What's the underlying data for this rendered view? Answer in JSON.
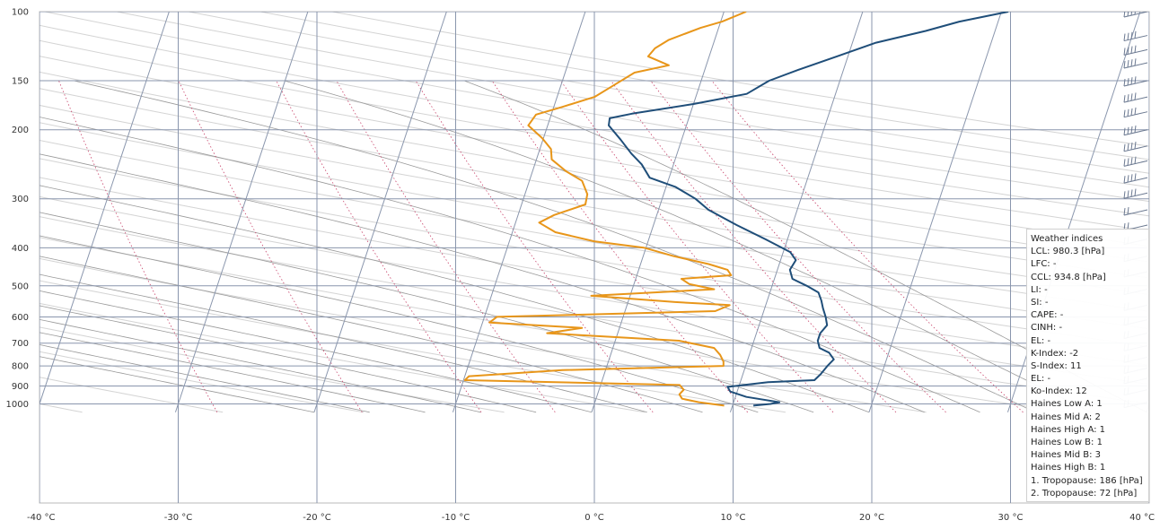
{
  "chart_data": {
    "type": "line",
    "title": "",
    "x_axis": {
      "ticks": [
        "-40 °C",
        "-30 °C",
        "-20 °C",
        "-10 °C",
        "0 °C",
        "10 °C",
        "20 °C",
        "30 °C",
        "40 °C"
      ],
      "values": [
        -40,
        -30,
        -20,
        -10,
        0,
        10,
        20,
        30,
        40
      ],
      "range": [
        -40,
        40
      ]
    },
    "y_axis": {
      "ticks": [
        "100",
        "150",
        "200",
        "300",
        "400",
        "500",
        "600",
        "700",
        "800",
        "900",
        "1000"
      ],
      "values": [
        100,
        150,
        200,
        300,
        400,
        500,
        600,
        700,
        800,
        900,
        1000
      ],
      "scale": "log",
      "range": [
        1050,
        100
      ],
      "inverted": true
    },
    "grid": true,
    "skew_t": true,
    "series": [
      {
        "color": "#1f4e79",
        "points": [
          [
            1010,
            11.5
          ],
          [
            1000,
            12.7
          ],
          [
            990,
            13.3
          ],
          [
            960,
            10.8
          ],
          [
            930,
            9.5
          ],
          [
            905,
            9.2
          ],
          [
            880,
            12
          ],
          [
            870,
            15.3
          ],
          [
            840,
            15.6
          ],
          [
            800,
            15.9
          ],
          [
            770,
            16.2
          ],
          [
            740,
            15.7
          ],
          [
            720,
            14.9
          ],
          [
            690,
            14.6
          ],
          [
            660,
            14.6
          ],
          [
            630,
            14.9
          ],
          [
            600,
            14.6
          ],
          [
            570,
            14.2
          ],
          [
            545,
            13.9
          ],
          [
            520,
            13.5
          ],
          [
            500,
            12.5
          ],
          [
            480,
            11.3
          ],
          [
            455,
            10.9
          ],
          [
            430,
            11.1
          ],
          [
            410,
            10.5
          ],
          [
            380,
            8.4
          ],
          [
            350,
            6
          ],
          [
            320,
            3.6
          ],
          [
            300,
            2.4
          ],
          [
            280,
            0.7
          ],
          [
            265,
            -1.4
          ],
          [
            245,
            -2.3
          ],
          [
            230,
            -3.3
          ],
          [
            212,
            -4.4
          ],
          [
            195,
            -5.6
          ],
          [
            187,
            -5.7
          ],
          [
            182,
            -4.2
          ],
          [
            172,
            0
          ],
          [
            162,
            3.6
          ],
          [
            150,
            4.9
          ],
          [
            140,
            6.9
          ],
          [
            130,
            9.2
          ],
          [
            120,
            11.7
          ],
          [
            112,
            15
          ],
          [
            106,
            17.2
          ],
          [
            100,
            20.5
          ]
        ]
      },
      {
        "color": "#e8961a",
        "points": [
          [
            1010,
            9.4
          ],
          [
            990,
            7.5
          ],
          [
            970,
            6.2
          ],
          [
            945,
            5.9
          ],
          [
            920,
            6.1
          ],
          [
            895,
            5.7
          ],
          [
            870,
            -9.9
          ],
          [
            850,
            -9.7
          ],
          [
            820,
            -3.1
          ],
          [
            800,
            8.4
          ],
          [
            780,
            8.3
          ],
          [
            750,
            7.9
          ],
          [
            720,
            7.3
          ],
          [
            690,
            4.6
          ],
          [
            660,
            -5.1
          ],
          [
            640,
            -2.7
          ],
          [
            620,
            -9.5
          ],
          [
            600,
            -9.1
          ],
          [
            580,
            6.5
          ],
          [
            560,
            7.4
          ],
          [
            550,
            3.4
          ],
          [
            530,
            -2.8
          ],
          [
            510,
            5.9
          ],
          [
            495,
            4
          ],
          [
            480,
            3.3
          ],
          [
            470,
            6.8
          ],
          [
            455,
            6.4
          ],
          [
            440,
            4.9
          ],
          [
            420,
            2.2
          ],
          [
            400,
            -0.1
          ],
          [
            385,
            -3.9
          ],
          [
            365,
            -6.9
          ],
          [
            345,
            -8.3
          ],
          [
            330,
            -7.4
          ],
          [
            310,
            -5.4
          ],
          [
            292,
            -5.5
          ],
          [
            270,
            -6.2
          ],
          [
            255,
            -7.6
          ],
          [
            238,
            -8.9
          ],
          [
            224,
            -9.2
          ],
          [
            210,
            -10.1
          ],
          [
            195,
            -11.4
          ],
          [
            183,
            -11.1
          ],
          [
            175,
            -9.4
          ],
          [
            165,
            -7.3
          ],
          [
            155,
            -6.3
          ],
          [
            143,
            -5
          ],
          [
            137,
            -2.7
          ],
          [
            130,
            -4.4
          ],
          [
            124,
            -4.1
          ],
          [
            118,
            -3.3
          ],
          [
            110,
            -1.3
          ],
          [
            106,
            0.1
          ],
          [
            100,
            1.6
          ]
        ]
      }
    ],
    "wind_barbs": true
  },
  "indices": {
    "title": "Weather indices",
    "rows": [
      "LCL: 980.3 [hPa]",
      "LFC: -",
      "CCL: 934.8 [hPa]",
      "LI: -",
      "SI: -",
      "CAPE: -",
      "CINH: -",
      "EL: -",
      "K-Index: -2",
      "S-Index: 11",
      "EL: -",
      "Ko-Index: 12",
      "Haines Low A: 1",
      "Haines Mid A: 2",
      "Haines High A: 1",
      "Haines Low B: 1",
      "Haines Mid B: 3",
      "Haines High B: 1",
      "1. Tropopause: 186 [hPa]",
      "2. Tropopause: 72 [hPa]"
    ]
  }
}
